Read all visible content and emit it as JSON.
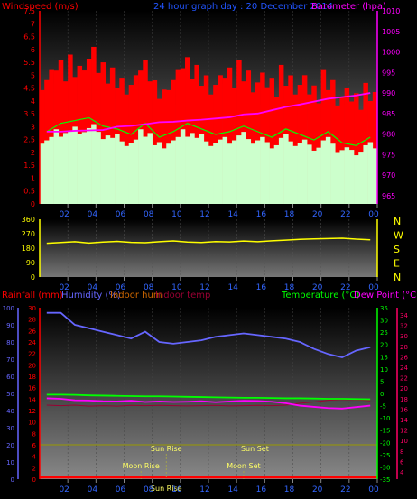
{
  "header": {
    "left": "Windspeed (m/s)",
    "center": "24 hour graph day : 20 December 2014",
    "right": "Barometer (hpa)"
  },
  "colors": {
    "wind_gust": "#ff0000",
    "wind_avg": "#ccffcc",
    "wind_avg_line": "#00ff00",
    "barometer": "#ff00ff",
    "direction": "#ffff00",
    "rainfall": "#ff0000",
    "humidity": "#6666ff",
    "indoor_hum": "#cc6600",
    "indoor_temp": "#990033",
    "temperature": "#00ff00",
    "dew_point": "#ff00ff",
    "sun": "#ffff66",
    "moon": "#ffff66"
  },
  "chart_data": [
    {
      "type": "line",
      "title": "24 hour graph day : 20 December 2014",
      "x_ticks": [
        "02",
        "04",
        "06",
        "08",
        "10",
        "12",
        "14",
        "16",
        "18",
        "20",
        "22",
        "00"
      ],
      "left_axis": {
        "label": "Windspeed (m/s)",
        "ylim": [
          0,
          7.5
        ],
        "ticks": [
          "7.5",
          "7",
          "6.5",
          "6",
          "5.5",
          "5",
          "4.5",
          "4",
          "3.5",
          "3",
          "2.5",
          "2",
          "1.5",
          "1",
          "0.5",
          "0"
        ]
      },
      "right_axis": {
        "label": "Barometer (hpa)",
        "ylim": [
          963,
          1010
        ],
        "ticks": [
          "1010",
          "1005",
          "1000",
          "995",
          "990",
          "985",
          "980",
          "975",
          "970",
          "965"
        ]
      },
      "series": [
        {
          "name": "gust",
          "values": [
            5.2,
            5.6,
            5.8,
            6.1,
            5.5,
            5.3,
            5.0,
            5.6,
            4.8,
            5.2,
            5.7,
            5.4,
            5.0,
            5.3,
            5.6,
            5.1,
            4.9,
            5.4,
            5.0,
            4.6,
            5.2,
            4.5,
            4.3,
            4.7
          ]
        },
        {
          "name": "average",
          "values": [
            2.6,
            2.9,
            3.0,
            3.1,
            2.8,
            2.7,
            2.5,
            2.9,
            2.4,
            2.6,
            2.9,
            2.7,
            2.5,
            2.6,
            2.8,
            2.6,
            2.4,
            2.7,
            2.5,
            2.3,
            2.6,
            2.2,
            2.1,
            2.4
          ]
        },
        {
          "name": "barometer",
          "values": [
            980.6,
            980.6,
            980.8,
            980.9,
            981.0,
            981.8,
            982.0,
            982.4,
            982.9,
            983.0,
            983.3,
            983.5,
            983.8,
            984.1,
            984.8,
            985.0,
            985.8,
            986.6,
            987.2,
            987.9,
            988.6,
            989.0,
            989.4,
            990.0
          ]
        }
      ]
    },
    {
      "type": "line",
      "y_ticks": [
        "360",
        "270",
        "180",
        "90",
        "0"
      ],
      "ylim": [
        0,
        360
      ],
      "right_labels": [
        "N",
        "W",
        "S",
        "E",
        "N"
      ],
      "series": [
        {
          "name": "direction",
          "values": [
            210,
            215,
            220,
            212,
            218,
            222,
            216,
            214,
            220,
            225,
            218,
            215,
            221,
            219,
            224,
            220,
            226,
            230,
            235,
            238,
            240,
            242,
            236,
            232
          ]
        }
      ]
    },
    {
      "type": "line",
      "legend": [
        "Rainfall (mm)",
        "Humidity (%)",
        "Indoor hum",
        "Indoor temp",
        "Temperature (°C)",
        "Dew Point (°C)"
      ],
      "left_axis_rain": {
        "ticks": [
          "30",
          "28",
          "26",
          "24",
          "22",
          "20",
          "18",
          "16",
          "14",
          "12",
          "10",
          "8",
          "6",
          "4",
          "2",
          "0"
        ],
        "ylim": [
          0,
          30
        ]
      },
      "left_axis_hum": {
        "ticks": [
          "100",
          "90",
          "80",
          "70",
          "60",
          "50",
          "40",
          "30",
          "20",
          "10",
          "0"
        ],
        "ylim": [
          0,
          100
        ]
      },
      "right_axis_temp": {
        "ticks": [
          "35",
          "30",
          "25",
          "20",
          "15",
          "10",
          "5",
          "0",
          "-5",
          "-10",
          "-15",
          "-20",
          "-25",
          "-30",
          "-35"
        ],
        "ylim": [
          -35,
          35
        ]
      },
      "right_axis_dew": {
        "ticks": [
          "34",
          "32",
          "30",
          "28",
          "26",
          "24",
          "22",
          "20",
          "18",
          "16",
          "14",
          "12",
          "10",
          "8",
          "6",
          "4"
        ]
      },
      "series": [
        {
          "name": "humidity",
          "values": [
            97,
            97,
            90,
            88,
            86,
            84,
            82,
            86,
            80,
            79,
            80,
            81,
            83,
            84,
            85,
            84,
            83,
            82,
            80,
            76,
            73,
            71,
            75,
            77
          ]
        },
        {
          "name": "temperature",
          "values": [
            -0.5,
            -0.5,
            -0.6,
            -0.8,
            -0.9,
            -1.0,
            -1.1,
            -1.2,
            -1.2,
            -1.3,
            -1.4,
            -1.5,
            -1.6,
            -1.7,
            -1.8,
            -1.8,
            -1.9,
            -2.0,
            -2.0,
            -2.1,
            -2.2,
            -2.2,
            -2.3,
            -2.4
          ]
        },
        {
          "name": "dew_point",
          "values": [
            -2.0,
            -2.2,
            -2.8,
            -2.9,
            -3.2,
            -3.3,
            -3.0,
            -3.5,
            -3.3,
            -3.5,
            -3.4,
            -3.2,
            -3.6,
            -3.3,
            -3.0,
            -3.1,
            -3.4,
            -4.0,
            -5.0,
            -5.5,
            -6.0,
            -6.2,
            -5.6,
            -5.0
          ]
        },
        {
          "name": "indoor_temp",
          "values": [
            -4.8,
            -5.0,
            -4.8,
            -5.2,
            -5.0,
            -5.2,
            -4.9,
            -5.0,
            -4.9,
            -5.0,
            -5.1,
            -5.0,
            -4.9,
            -5.1,
            -5.0,
            -4.9,
            -5.0,
            -4.8,
            -4.0,
            -3.5,
            -2.8,
            -2.5,
            -2.6,
            -3.0
          ]
        },
        {
          "name": "indoor_hum",
          "values": [
            6,
            6,
            6,
            6,
            6,
            6,
            6,
            6,
            6,
            6,
            6,
            6,
            6,
            6,
            6,
            6,
            6,
            6,
            6,
            6,
            6,
            6,
            6,
            6
          ]
        },
        {
          "name": "rainfall",
          "values": [
            0,
            0,
            0,
            0,
            0,
            0,
            0,
            0,
            0,
            0,
            0,
            0,
            0,
            0,
            0,
            0,
            0,
            0,
            0,
            0,
            0,
            0,
            0,
            0
          ]
        }
      ],
      "events": [
        {
          "label": "Moon Rise",
          "time": 7.2
        },
        {
          "label": "Sun Rise",
          "time": 9.0
        },
        {
          "label": "Sun Set",
          "time": 15.3
        },
        {
          "label": "Moon Set",
          "time": 14.5
        },
        {
          "label": "Sun Rise",
          "time": 9.0
        },
        {
          "label": "Sun Set",
          "time": 15.3
        }
      ],
      "bottom_event_label": "Sun Rise"
    }
  ]
}
